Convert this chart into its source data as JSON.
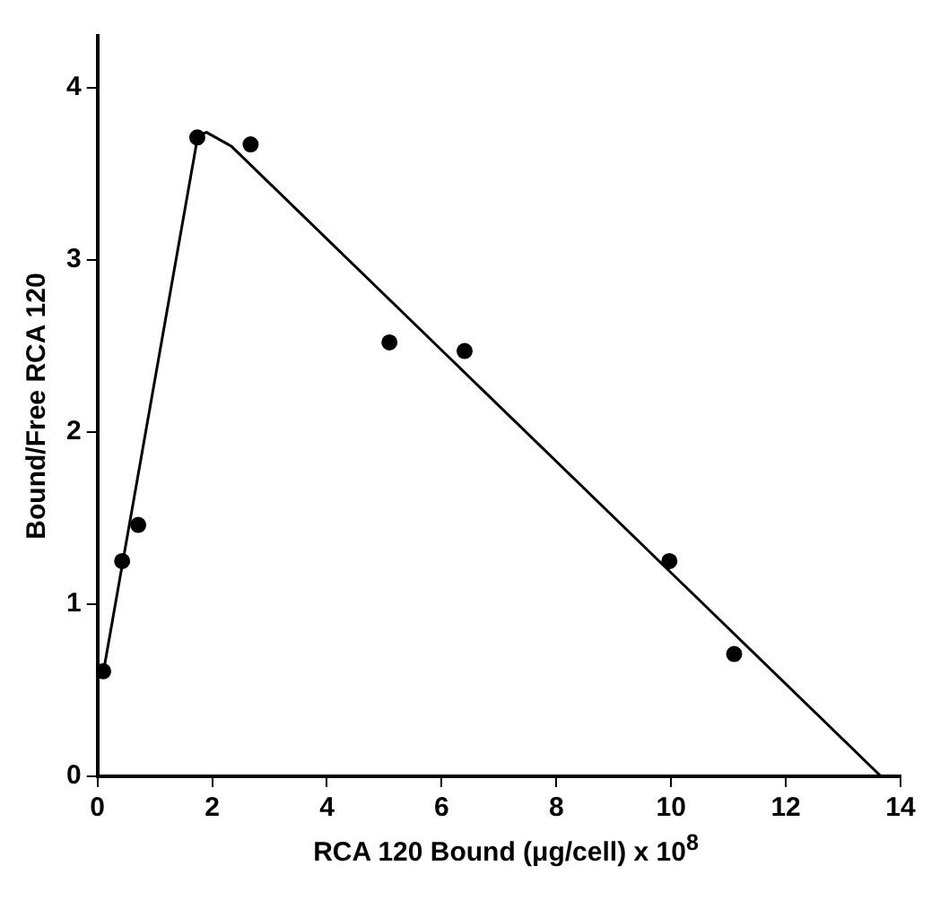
{
  "chart_data": {
    "type": "scatter",
    "xlabel": "RCA 120 Bound (μg/cell) x 10$^{8}$",
    "ylabel": "Bound/Free RCA 120",
    "xlim": [
      0,
      14
    ],
    "xticks": [
      0,
      2,
      4,
      6,
      8,
      10,
      12,
      14
    ],
    "ylim": [
      0,
      4.3
    ],
    "yticks": [
      0,
      1,
      2,
      3,
      4
    ],
    "grid": false,
    "legend": false,
    "series": [
      {
        "marker": "circle",
        "color": "#000000",
        "x": [
          0.1,
          0.43,
          0.71,
          1.74,
          2.67,
          5.09,
          6.4,
          9.97,
          11.1
        ],
        "values": [
          0.61,
          1.25,
          1.46,
          3.71,
          3.67,
          2.52,
          2.47,
          1.25,
          0.71
        ]
      },
      {
        "type": "line",
        "marker": "none",
        "color": "#000000",
        "x": [
          0.1,
          1.75,
          1.9,
          2.33,
          13.66
        ],
        "values": [
          0.6,
          3.72,
          3.74,
          3.66,
          0
        ]
      }
    ]
  }
}
